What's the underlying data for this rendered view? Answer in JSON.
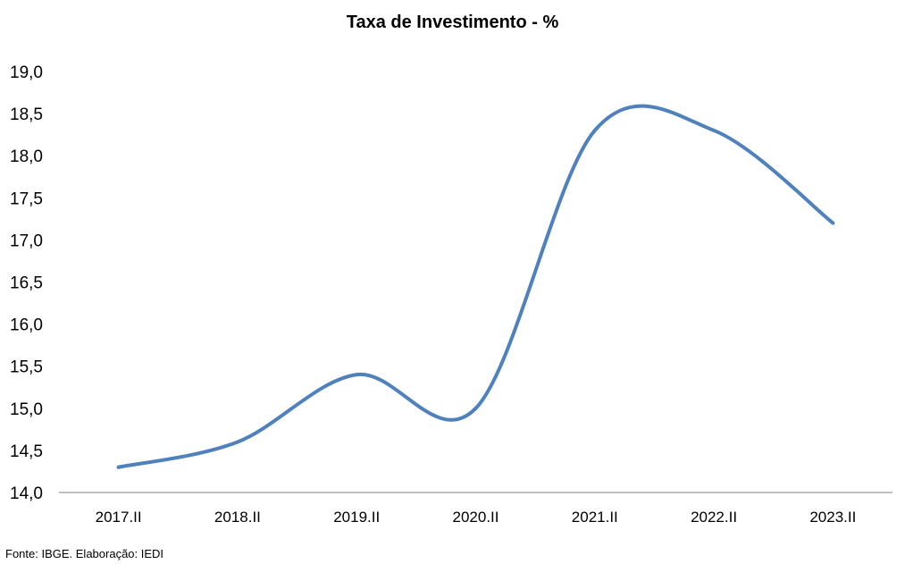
{
  "chart_data": {
    "type": "line",
    "title": "Taxa de Investimento - %",
    "xlabel": "",
    "ylabel": "",
    "categories": [
      "2017.II",
      "2018.II",
      "2019.II",
      "2020.II",
      "2021.II",
      "2022.II",
      "2023.II"
    ],
    "series": [
      {
        "values": [
          14.3,
          14.6,
          15.4,
          15.0,
          18.3,
          18.3,
          17.2
        ]
      }
    ],
    "ylim": [
      14.0,
      19.0
    ],
    "y_ticks": [
      "14,0",
      "14,5",
      "15,0",
      "15,5",
      "16,0",
      "16,5",
      "17,0",
      "17,5",
      "18,0",
      "18,5",
      "19,0"
    ],
    "grid": false,
    "legend": "none",
    "line_color": "#4f81bd",
    "smooth": true
  },
  "source_note": "Fonte: IBGE. Elaboração: IEDI"
}
